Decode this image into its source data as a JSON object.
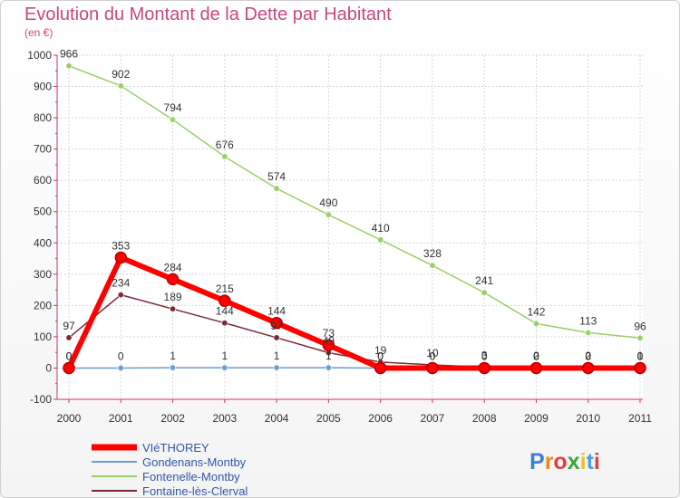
{
  "chart_data": {
    "type": "line",
    "title": "Evolution du Montant de la Dette par Habitant",
    "subtitle": "(en €)",
    "ylim": [
      -100,
      1000
    ],
    "yticks": [
      -100,
      0,
      100,
      200,
      300,
      400,
      500,
      600,
      700,
      800,
      900,
      1000
    ],
    "categories": [
      "2000",
      "2001",
      "2002",
      "2003",
      "2004",
      "2005",
      "2006",
      "2007",
      "2008",
      "2009",
      "2010",
      "2011"
    ],
    "series": [
      {
        "name": "Fontaine-lès-Clerval",
        "color": "#7b2a35",
        "width": 1.5,
        "values": [
          97,
          234,
          189,
          144,
          97,
          49,
          19,
          10,
          3,
          2,
          2,
          1
        ],
        "labels": [
          "97",
          "234",
          "189",
          "144",
          "97",
          "49",
          "19",
          "10",
          "3",
          "2",
          "2",
          "1"
        ]
      },
      {
        "name": "Fontenelle-Montby",
        "color": "#99d066",
        "width": 1.5,
        "values": [
          966,
          902,
          794,
          676,
          574,
          490,
          410,
          328,
          241,
          142,
          113,
          96
        ],
        "labels": [
          "966",
          "902",
          "794",
          "676",
          "574",
          "490",
          "410",
          "328",
          "241",
          "142",
          "113",
          "96"
        ]
      },
      {
        "name": "Gondenans-Montby",
        "color": "#6a9ed0",
        "width": 1.5,
        "values": [
          0,
          0,
          1,
          1,
          1,
          1,
          0,
          0,
          0,
          0,
          0,
          0
        ],
        "labels": [
          "0",
          "0",
          "1",
          "1",
          "1",
          "1",
          "0",
          "0",
          "0",
          "0",
          "0",
          "0"
        ]
      },
      {
        "name": "VIéTHOREY",
        "color": "#ff0000",
        "width": 6,
        "values": [
          0,
          353,
          284,
          215,
          144,
          73,
          0,
          0,
          0,
          0,
          0,
          0
        ],
        "labels": [
          "0",
          "353",
          "284",
          "215",
          "144",
          "73",
          "0",
          "0",
          "0",
          "0",
          "0",
          "0"
        ]
      }
    ]
  },
  "legend": [
    {
      "label": "VIéTHOREY",
      "color": "#ff0000",
      "thick": true
    },
    {
      "label": "Gondenans-Montby",
      "color": "#6a9ed0",
      "thick": false
    },
    {
      "label": "Fontenelle-Montby",
      "color": "#99d066",
      "thick": false
    },
    {
      "label": "Fontaine-lès-Clerval",
      "color": "#7b2a35",
      "thick": false
    }
  ],
  "logo": {
    "text": "Proxiti"
  }
}
